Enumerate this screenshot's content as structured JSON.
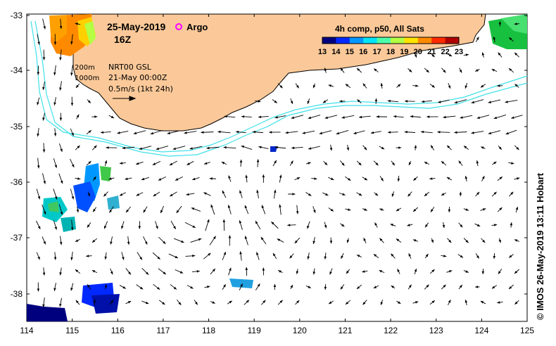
{
  "date": "25-May-2019",
  "time": "16Z",
  "argo_label": "Argo",
  "depth_200": "200m",
  "depth_1000": "1000m",
  "nrt_label": "NRT00 GSL",
  "nrt_time": "21-May 00:00Z",
  "scale_label": "0.5m/s (1kt 24h)",
  "colorbar": {
    "title": "4h comp, p50, All Sats",
    "ticks": [
      "13",
      "14",
      "15",
      "16",
      "17",
      "18",
      "19",
      "20",
      "21",
      "22",
      "23"
    ],
    "colors": [
      "#00007f",
      "#0028ff",
      "#0098ff",
      "#00e4f8",
      "#4cffa8",
      "#b4ff44",
      "#ffe400",
      "#ff8a00",
      "#ff2a00",
      "#b00000"
    ]
  },
  "x_ticks": [
    "114",
    "115",
    "116",
    "117",
    "118",
    "119",
    "120",
    "121",
    "122",
    "123",
    "124",
    "125"
  ],
  "y_ticks": [
    "-33",
    "-34",
    "-35",
    "-36",
    "-37",
    "-38"
  ],
  "credit": "© IMOS 26-May-2019 13:11 Hobart",
  "colors": {
    "land": "#fbc999",
    "contour": "#40e0e8",
    "argo": "#ff00ff"
  }
}
